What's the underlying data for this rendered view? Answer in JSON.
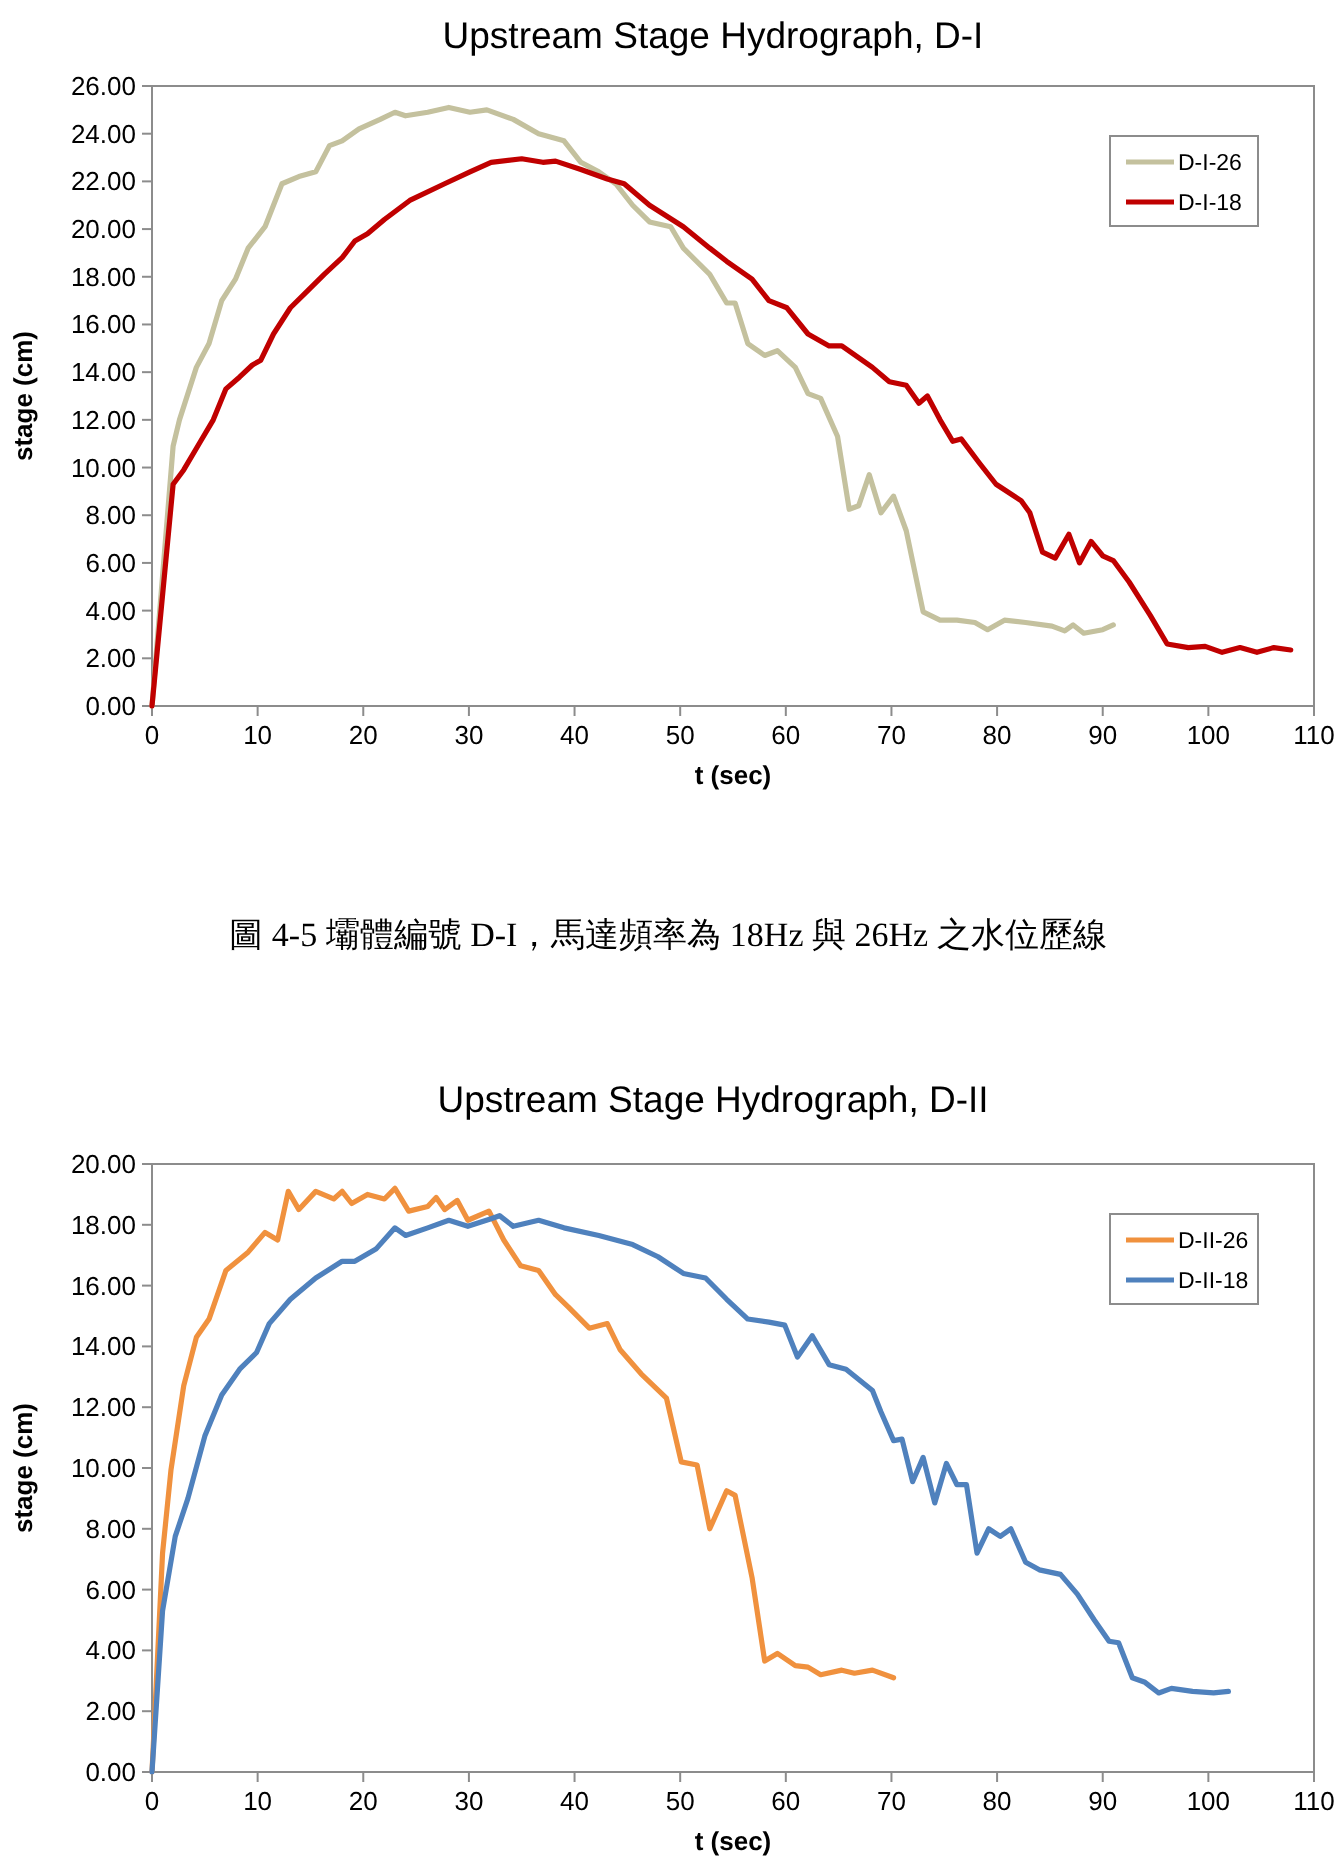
{
  "chart_data": [
    {
      "type": "line",
      "title": "Upstream Stage Hydrograph, D-I",
      "xlabel": "t (sec)",
      "ylabel": "stage (cm)",
      "legend": "top right",
      "xlim": [
        0,
        110
      ],
      "xticks": [
        0,
        10,
        20,
        30,
        40,
        50,
        60,
        70,
        80,
        90,
        100,
        110
      ],
      "ylim": [
        0,
        26
      ],
      "yticks": [
        {
          "value": 0,
          "label": "0.00"
        },
        {
          "value": 2,
          "label": "2.00"
        },
        {
          "value": 4,
          "label": "4.00"
        },
        {
          "value": 6,
          "label": "6.00"
        },
        {
          "value": 8,
          "label": "8.00"
        },
        {
          "value": 10,
          "label": "10.00"
        },
        {
          "value": 12,
          "label": "12.00"
        },
        {
          "value": 14,
          "label": "14.00"
        },
        {
          "value": 16,
          "label": "16.00"
        },
        {
          "value": 18,
          "label": "18.00"
        },
        {
          "value": 20,
          "label": "20.00"
        },
        {
          "value": 22,
          "label": "22.00"
        },
        {
          "value": 24,
          "label": "24.00"
        },
        {
          "value": 26,
          "label": "26.00"
        }
      ],
      "annotations": [
        "圖 4-5  壩體編號 D-I，馬達頻率為 18Hz 與 26Hz 之水位歷線"
      ],
      "series": [
        {
          "name": "D-I-26",
          "color": "#c4c19e",
          "x": [
            0,
            2,
            2.6,
            4.2,
            5.4,
            6.6,
            7.9,
            9.1,
            10.7,
            12.3,
            13.9,
            15.5,
            16.8,
            18,
            19.6,
            21.6,
            23,
            24,
            26.1,
            28.1,
            30.1,
            31.7,
            34.2,
            36.6,
            39,
            40.6,
            42.3,
            43.9,
            45.5,
            47.1,
            49.1,
            50.3,
            52.8,
            54.4,
            55.2,
            56.4,
            58,
            59.2,
            60.9,
            62.1,
            63.3,
            64.9,
            66,
            66.9,
            67.9,
            69,
            70.2,
            71.4,
            73,
            74.6,
            76.2,
            77.9,
            79.1,
            80.7,
            82.7,
            85.2,
            86.4,
            87.2,
            88.2,
            90,
            91
          ],
          "values": [
            0,
            10.9,
            12.0,
            14.2,
            15.2,
            17.0,
            17.9,
            19.2,
            20.1,
            21.9,
            22.2,
            22.4,
            23.5,
            23.7,
            24.2,
            24.6,
            24.9,
            24.75,
            24.9,
            25.1,
            24.9,
            25.0,
            24.6,
            24.0,
            23.7,
            22.8,
            22.4,
            21.9,
            21.0,
            20.3,
            20.1,
            19.2,
            18.1,
            16.9,
            16.9,
            15.2,
            14.7,
            14.9,
            14.2,
            13.1,
            12.9,
            11.3,
            8.25,
            8.4,
            9.7,
            8.1,
            8.8,
            7.35,
            3.95,
            3.6,
            3.6,
            3.5,
            3.2,
            3.6,
            3.5,
            3.35,
            3.15,
            3.4,
            3.05,
            3.2,
            3.4
          ]
        },
        {
          "name": "D-I-18",
          "color": "#c00000",
          "x": [
            0,
            2,
            3,
            4.6,
            5.8,
            7,
            8.3,
            9.5,
            10.3,
            11.5,
            13.1,
            14.7,
            16.3,
            18,
            19.2,
            20.4,
            22,
            24.4,
            27.7,
            30.1,
            32.1,
            35,
            37,
            38.2,
            40.6,
            43.1,
            44.7,
            47.1,
            50.3,
            52.8,
            54.4,
            56.8,
            58.4,
            60.1,
            62.1,
            64.1,
            65.3,
            68.2,
            69.8,
            71.4,
            72.6,
            73.4,
            74.6,
            75.8,
            76.6,
            78.3,
            79.9,
            82.3,
            83.1,
            84.3,
            85.5,
            86.8,
            87.8,
            88.9,
            90,
            91,
            92.5,
            94.5,
            96.1,
            98.1,
            99.7,
            101.3,
            103,
            104.6,
            106.2,
            107.8
          ],
          "values": [
            0,
            9.3,
            9.9,
            11.1,
            12.0,
            13.3,
            13.8,
            14.3,
            14.5,
            15.6,
            16.7,
            17.4,
            18.1,
            18.8,
            19.5,
            19.8,
            20.4,
            21.2,
            21.9,
            22.4,
            22.8,
            22.95,
            22.8,
            22.85,
            22.5,
            22.1,
            21.9,
            21.0,
            20.1,
            19.2,
            18.65,
            17.9,
            17.0,
            16.7,
            15.6,
            15.1,
            15.1,
            14.2,
            13.6,
            13.45,
            12.7,
            13.0,
            12.0,
            11.1,
            11.2,
            10.2,
            9.3,
            8.6,
            8.1,
            6.45,
            6.2,
            7.2,
            6.0,
            6.9,
            6.3,
            6.1,
            5.2,
            3.8,
            2.6,
            2.45,
            2.5,
            2.25,
            2.45,
            2.25,
            2.45,
            2.35
          ]
        }
      ]
    },
    {
      "type": "line",
      "title": "Upstream Stage Hydrograph, D-II",
      "xlabel": "t (sec)",
      "ylabel": "stage (cm)",
      "legend": "top right",
      "xlim": [
        0,
        110
      ],
      "xticks": [
        0,
        10,
        20,
        30,
        40,
        50,
        60,
        70,
        80,
        90,
        100,
        110
      ],
      "ylim": [
        0,
        20
      ],
      "yticks": [
        {
          "value": 0,
          "label": "0.00"
        },
        {
          "value": 2,
          "label": "2.00"
        },
        {
          "value": 4,
          "label": "4.00"
        },
        {
          "value": 6,
          "label": "6.00"
        },
        {
          "value": 8,
          "label": "8.00"
        },
        {
          "value": 10,
          "label": "10.00"
        },
        {
          "value": 12,
          "label": "12.00"
        },
        {
          "value": 14,
          "label": "14.00"
        },
        {
          "value": 16,
          "label": "16.00"
        },
        {
          "value": 18,
          "label": "18.00"
        },
        {
          "value": 20,
          "label": "20.00"
        }
      ],
      "series": [
        {
          "name": "D-II-26",
          "color": "#f0913e",
          "x": [
            0,
            1,
            1.8,
            3,
            4.2,
            5.4,
            7,
            9.1,
            10.7,
            11.9,
            12.9,
            13.9,
            15.5,
            17.2,
            18,
            18.9,
            20.4,
            22,
            23,
            24.3,
            26.1,
            26.9,
            27.7,
            28.9,
            29.9,
            31.9,
            33.3,
            34.9,
            36.6,
            38.2,
            39.4,
            41.4,
            43.1,
            44.3,
            46.3,
            48.7,
            50.1,
            51.6,
            52.8,
            54.4,
            55.2,
            56.8,
            58,
            59.2,
            60.9,
            62.1,
            63.3,
            65.3,
            66.5,
            68.2,
            70.2
          ],
          "values": [
            0,
            7.2,
            9.95,
            12.7,
            14.3,
            14.9,
            16.5,
            17.1,
            17.75,
            17.5,
            19.1,
            18.5,
            19.1,
            18.85,
            19.1,
            18.7,
            19.0,
            18.85,
            19.2,
            18.45,
            18.6,
            18.9,
            18.5,
            18.8,
            18.15,
            18.45,
            17.5,
            16.65,
            16.5,
            15.7,
            15.3,
            14.6,
            14.75,
            13.9,
            13.1,
            12.3,
            10.2,
            10.1,
            8.0,
            9.25,
            9.1,
            6.4,
            3.65,
            3.9,
            3.5,
            3.45,
            3.2,
            3.35,
            3.25,
            3.35,
            3.1
          ]
        },
        {
          "name": "D-II-18",
          "color": "#4f81bd",
          "x": [
            0,
            1,
            2.2,
            3.4,
            5,
            6.6,
            8.3,
            9.9,
            11.1,
            13.1,
            15.5,
            18,
            19.2,
            21.2,
            23,
            24,
            26.1,
            28.1,
            29.9,
            32.1,
            32.9,
            34.2,
            36.6,
            39,
            42.3,
            45.5,
            47.9,
            50.3,
            52.4,
            54.4,
            56.4,
            58.4,
            59.9,
            61.1,
            62.5,
            64.1,
            65.7,
            68.2,
            69,
            70.2,
            71,
            72,
            73,
            74.1,
            75.2,
            76.2,
            77.1,
            78.1,
            79.2,
            80.3,
            81.3,
            82.7,
            84,
            86,
            87.6,
            89.2,
            90.6,
            91.5,
            92.8,
            94,
            95.3,
            96.5,
            98.5,
            100.5,
            101.9
          ],
          "values": [
            0,
            5.3,
            7.75,
            9.0,
            11.05,
            12.4,
            13.25,
            13.8,
            14.75,
            15.55,
            16.25,
            16.8,
            16.8,
            17.2,
            17.9,
            17.65,
            17.9,
            18.15,
            17.95,
            18.2,
            18.3,
            17.95,
            18.15,
            17.9,
            17.65,
            17.35,
            16.95,
            16.4,
            16.25,
            15.55,
            14.9,
            14.8,
            14.7,
            13.65,
            14.35,
            13.4,
            13.25,
            12.55,
            11.85,
            10.9,
            10.95,
            9.55,
            10.35,
            8.85,
            10.15,
            9.45,
            9.45,
            7.2,
            8.0,
            7.75,
            8.0,
            6.9,
            6.65,
            6.5,
            5.85,
            5.0,
            4.3,
            4.25,
            3.1,
            2.95,
            2.6,
            2.75,
            2.65,
            2.6,
            2.65
          ]
        }
      ]
    }
  ]
}
